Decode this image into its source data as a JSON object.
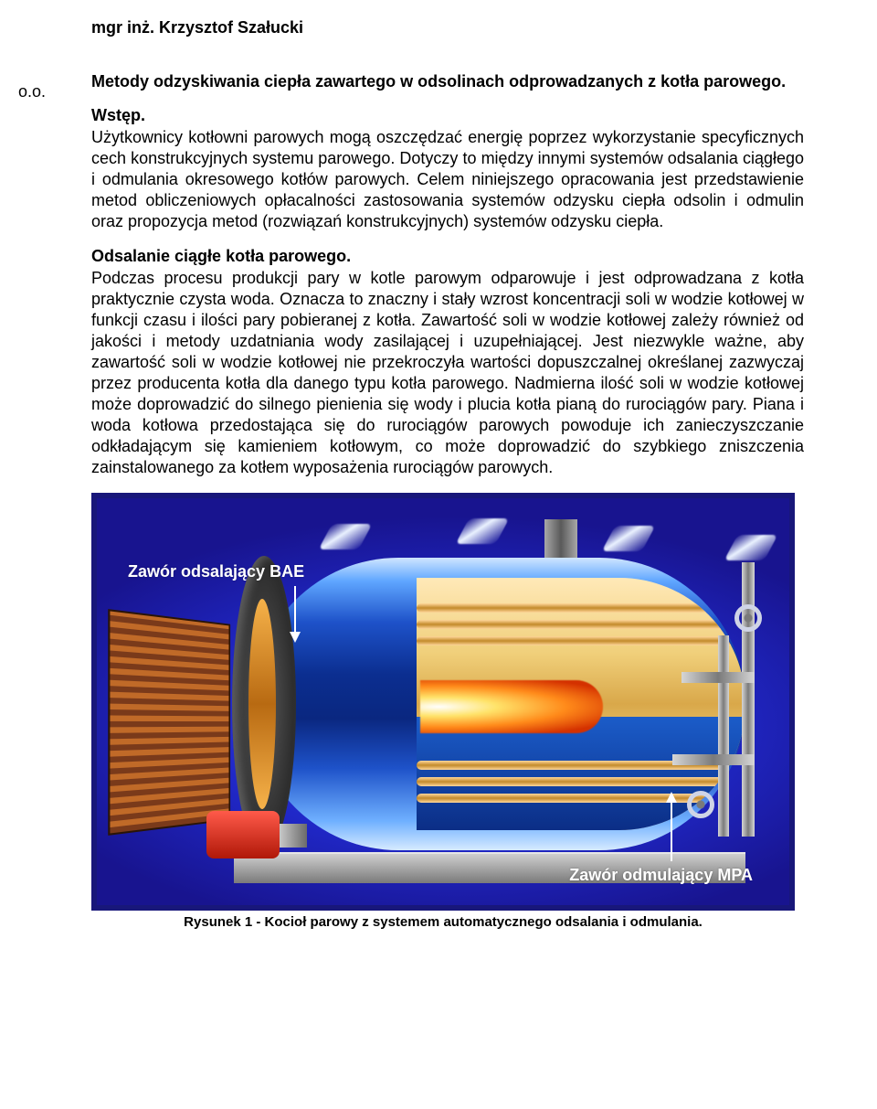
{
  "left_margin_text": "o.o.",
  "author": "mgr inż. Krzysztof Szałucki",
  "title": "Metody odzyskiwania ciepła zawartego w odsolinach odprowadzanych z kotła parowego.",
  "sec1_head": "Wstęp.",
  "sec1_body": "Użytkownicy kotłowni parowych mogą oszczędzać energię poprzez wykorzystanie specyficznych cech konstrukcyjnych systemu parowego. Dotyczy to między innymi systemów odsalania ciągłego i odmulania okresowego kotłów parowych. Celem niniejszego opracowania jest przedstawienie metod obliczeniowych opłacalności zastosowania systemów odzysku ciepła odsolin i odmulin oraz propozycja metod (rozwiązań konstrukcyjnych) systemów odzysku ciepła.",
  "sec2_head": "Odsalanie ciągłe kotła parowego.",
  "sec2_body": "Podczas procesu produkcji pary w kotle parowym odparowuje i jest odprowadzana z kotła praktycznie czysta woda. Oznacza to znaczny i stały wzrost koncentracji soli w wodzie kotłowej w funkcji czasu i ilości pary pobieranej z kotła. Zawartość soli w wodzie kotłowej zależy również od jakości i metody uzdatniania wody zasilającej i uzupełniającej. Jest niezwykle ważne, aby zawartość soli w wodzie kotłowej nie przekroczyła wartości dopuszczalnej określanej zazwyczaj przez producenta kotła dla danego typu kotła parowego. Nadmierna ilość soli w wodzie kotłowej może doprowadzić do silnego pienienia się wody i plucia kotła pianą do rurociągów pary. Piana i woda kotłowa przedostająca się do rurociągów parowych powoduje ich zanieczyszczanie odkładającym się kamieniem kotłowym, co może doprowadzić do szybkiego zniszczenia zainstalowanego za kotłem wyposażenia rurociągów parowych.",
  "figure": {
    "label1": "Zawór odsalający BAE",
    "label2": "Zawór odmulający MPA",
    "caption": "Rysunek 1 - Kocioł parowy z systemem automatycznego odsalania i odmulania.",
    "border_color": "#18177a",
    "bg_color": "#2a17b5"
  }
}
